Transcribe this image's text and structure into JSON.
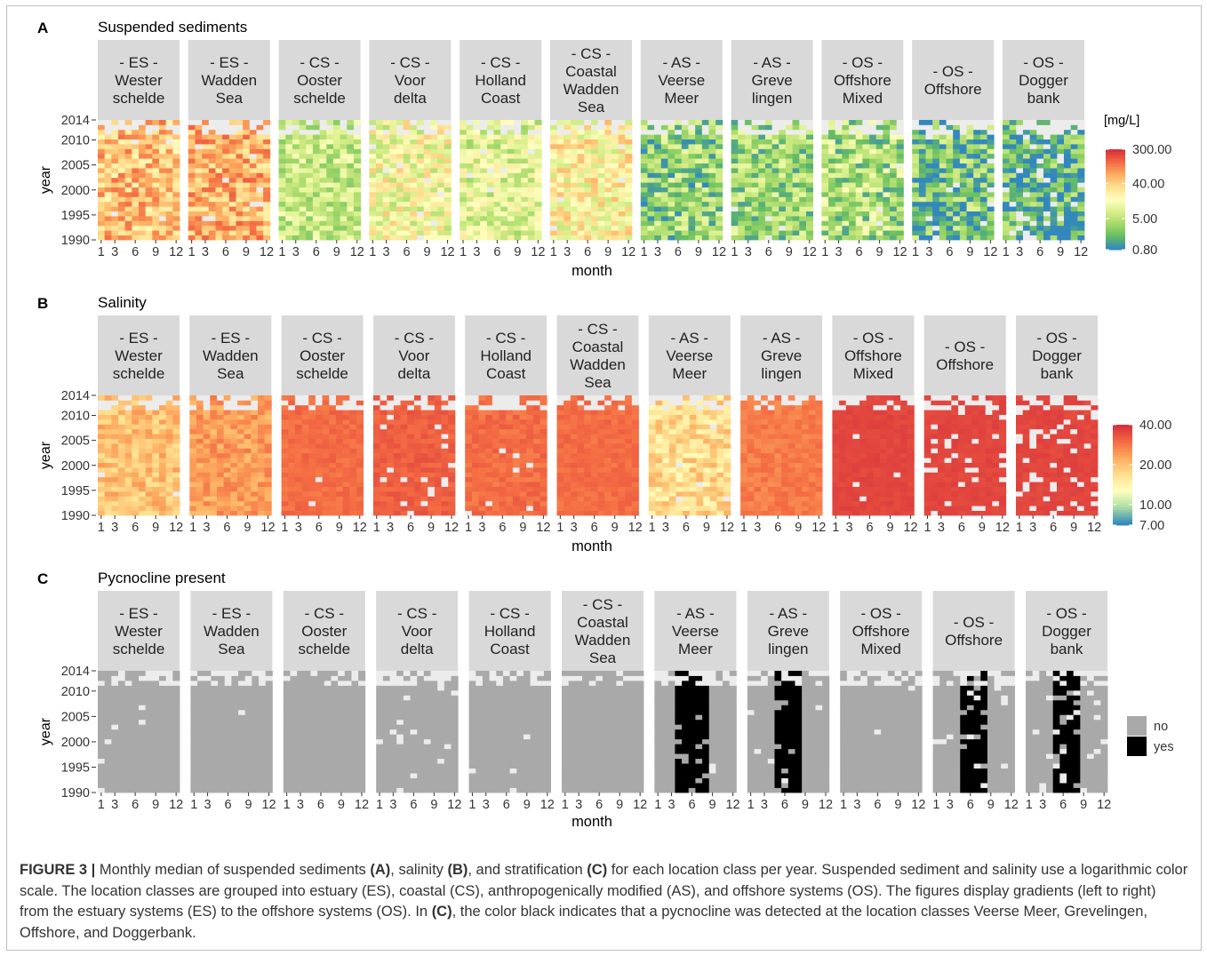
{
  "chart_data": [
    {
      "type": "heatmap",
      "panel_letter": "A",
      "title": "Suspended sediments",
      "xlabel": "month",
      "ylabel": "year",
      "x_ticks": [
        "1",
        "3",
        "6",
        "9",
        "12"
      ],
      "y_ticks": [
        "1990",
        "1995",
        "2000",
        "2005",
        "2010",
        "2014"
      ],
      "ylim": [
        1990,
        2014
      ],
      "xlim": [
        1,
        12
      ],
      "scale": "log",
      "legend_title": "[mg/L]",
      "legend_labels": [
        "300.00",
        "40.00",
        "5.00",
        "0.80"
      ],
      "legend_values": [
        300,
        40,
        5,
        0.8
      ],
      "colors": [
        "#d7303c",
        "#f46d43",
        "#fdae61",
        "#fee090",
        "#ffffbf",
        "#d9ef8b",
        "#a6d96a",
        "#66bd63",
        "#3288bd"
      ],
      "facets": [
        {
          "label": [
            "- ES -",
            "Wester",
            "schelde"
          ],
          "typical": 50,
          "spread": 0.35,
          "missing": 0.01
        },
        {
          "label": [
            "- ES -",
            "Wadden",
            "Sea"
          ],
          "typical": 60,
          "spread": 0.35,
          "missing": 0.02
        },
        {
          "label": [
            "- CS -",
            "Ooster",
            "schelde"
          ],
          "typical": 6,
          "spread": 0.3,
          "missing": 0.0
        },
        {
          "label": [
            "- CS -",
            "Voor",
            "delta"
          ],
          "typical": 14,
          "spread": 0.4,
          "missing": 0.04
        },
        {
          "label": [
            "- CS -",
            "Holland",
            "Coast"
          ],
          "typical": 9,
          "spread": 0.35,
          "missing": 0.02
        },
        {
          "label": [
            "- CS -",
            "Coastal",
            "Wadden",
            "Sea"
          ],
          "typical": 18,
          "spread": 0.4,
          "missing": 0.01
        },
        {
          "label": [
            "- AS -",
            "Veerse",
            "Meer"
          ],
          "typical": 3,
          "spread": 0.45,
          "missing": 0.0
        },
        {
          "label": [
            "- AS -",
            "Greve",
            "lingen"
          ],
          "typical": 3.5,
          "spread": 0.4,
          "missing": 0.01
        },
        {
          "label": [
            "- OS -",
            "Offshore",
            "Mixed"
          ],
          "typical": 4,
          "spread": 0.45,
          "missing": 0.01
        },
        {
          "label": [
            "- OS -",
            "Offshore"
          ],
          "typical": 2,
          "spread": 0.5,
          "missing": 0.04
        },
        {
          "label": [
            "- OS -",
            "Dogger",
            "bank"
          ],
          "typical": 1.6,
          "spread": 0.45,
          "missing": 0.12
        }
      ]
    },
    {
      "type": "heatmap",
      "panel_letter": "B",
      "title": "Salinity",
      "xlabel": "month",
      "ylabel": "year",
      "x_ticks": [
        "1",
        "3",
        "6",
        "9",
        "12"
      ],
      "y_ticks": [
        "1990",
        "1995",
        "2000",
        "2005",
        "2010",
        "2014"
      ],
      "ylim": [
        1990,
        2014
      ],
      "xlim": [
        1,
        12
      ],
      "scale": "log",
      "legend_labels": [
        "40.00",
        "20.00",
        "10.00",
        "7.00"
      ],
      "legend_values": [
        40,
        20,
        10,
        7
      ],
      "colors": [
        "#d7303c",
        "#f46d43",
        "#fdae61",
        "#fee090",
        "#ffffbf",
        "#abdda4",
        "#3288bd"
      ],
      "facets": [
        {
          "label": [
            "- ES -",
            "Wester",
            "schelde"
          ],
          "typical": 20,
          "spread": 0.25,
          "missing": 0.01
        },
        {
          "label": [
            "- ES -",
            "Wadden",
            "Sea"
          ],
          "typical": 24,
          "spread": 0.2,
          "missing": 0.01
        },
        {
          "label": [
            "- CS -",
            "Ooster",
            "schelde"
          ],
          "typical": 30,
          "spread": 0.08,
          "missing": 0.01
        },
        {
          "label": [
            "- CS -",
            "Voor",
            "delta"
          ],
          "typical": 32,
          "spread": 0.08,
          "missing": 0.05
        },
        {
          "label": [
            "- CS -",
            "Holland",
            "Coast"
          ],
          "typical": 30,
          "spread": 0.1,
          "missing": 0.02
        },
        {
          "label": [
            "- CS -",
            "Coastal",
            "Wadden",
            "Sea"
          ],
          "typical": 30,
          "spread": 0.08,
          "missing": 0.0
        },
        {
          "label": [
            "- AS -",
            "Veerse",
            "Meer"
          ],
          "typical": 17,
          "spread": 0.3,
          "missing": 0.02
        },
        {
          "label": [
            "- AS -",
            "Greve",
            "lingen"
          ],
          "typical": 28,
          "spread": 0.1,
          "missing": 0.0
        },
        {
          "label": [
            "- OS -",
            "Offshore",
            "Mixed"
          ],
          "typical": 36,
          "spread": 0.04,
          "missing": 0.02
        },
        {
          "label": [
            "- OS -",
            "Offshore"
          ],
          "typical": 36,
          "spread": 0.04,
          "missing": 0.08
        },
        {
          "label": [
            "- OS -",
            "Dogger",
            "bank"
          ],
          "typical": 36,
          "spread": 0.04,
          "missing": 0.14
        }
      ]
    },
    {
      "type": "heatmap",
      "panel_letter": "C",
      "title": "Pycnocline present",
      "xlabel": "month",
      "ylabel": "year",
      "x_ticks": [
        "1",
        "3",
        "6",
        "9",
        "12"
      ],
      "y_ticks": [
        "1990",
        "1995",
        "2000",
        "2005",
        "2010",
        "2014"
      ],
      "ylim": [
        1990,
        2014
      ],
      "xlim": [
        1,
        12
      ],
      "scale": "categorical",
      "legend_labels": [
        "no",
        "yes"
      ],
      "legend_colors": [
        "#a9a9a9",
        "#000000"
      ],
      "facets": [
        {
          "label": [
            "- ES -",
            "Wester",
            "schelde"
          ],
          "yes_months": [],
          "missing": 0.02
        },
        {
          "label": [
            "- ES -",
            "Wadden",
            "Sea"
          ],
          "yes_months": [],
          "missing": 0.01
        },
        {
          "label": [
            "- CS -",
            "Ooster",
            "schelde"
          ],
          "yes_months": [],
          "missing": 0.0
        },
        {
          "label": [
            "- CS -",
            "Voor",
            "delta"
          ],
          "yes_months": [],
          "missing": 0.04
        },
        {
          "label": [
            "- CS -",
            "Holland",
            "Coast"
          ],
          "yes_months": [],
          "missing": 0.02
        },
        {
          "label": [
            "- CS -",
            "Coastal",
            "Wadden",
            "Sea"
          ],
          "yes_months": [],
          "missing": 0.01
        },
        {
          "label": [
            "- AS -",
            "Veerse",
            "Meer"
          ],
          "yes_months": [
            4,
            5,
            6,
            7,
            8
          ],
          "missing": 0.01
        },
        {
          "label": [
            "- AS -",
            "Greve",
            "lingen"
          ],
          "yes_months": [
            5,
            6,
            7,
            8
          ],
          "missing": 0.01
        },
        {
          "label": [
            "- OS -",
            "Offshore",
            "Mixed"
          ],
          "yes_months": [],
          "missing": 0.01
        },
        {
          "label": [
            "- OS -",
            "Offshore"
          ],
          "yes_months": [
            5,
            6,
            7,
            8
          ],
          "missing": 0.05
        },
        {
          "label": [
            "- OS -",
            "Dogger",
            "bank"
          ],
          "yes_months": [
            5,
            6,
            7,
            8
          ],
          "missing": 0.1
        }
      ]
    }
  ],
  "caption": {
    "lead": "FIGURE 3 |",
    "t1": " Monthly median of suspended sediments ",
    "b1": "(A)",
    "t2": ", salinity ",
    "b2": "(B)",
    "t3": ", and stratification ",
    "b3": "(C)",
    "t4": " for each location class per year. Suspended sediment and salinity use a logarithmic color scale. The location classes are grouped into estuary (ES), coastal (CS), anthropogenically modified (AS), and offshore systems (OS). The figures display gradients (left to right) from the estuary systems (ES) to the offshore systems (OS). In ",
    "b4": "(C)",
    "t5": ", the color black indicates that a pycnocline was detected at the location classes Veerse Meer, Grevelingen, Offshore, and Doggerbank."
  }
}
